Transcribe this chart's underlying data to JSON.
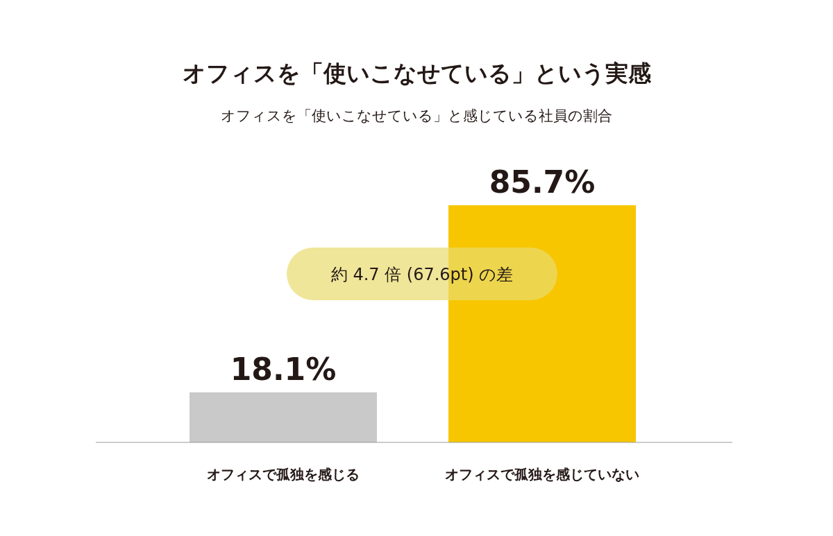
{
  "chart_data": {
    "type": "bar",
    "title": "オフィスを「使いこなせている」という実感",
    "subtitle": "オフィスを「使いこなせている」と感じている社員の割合",
    "categories": [
      "オフィスで孤独を感じる",
      "オフィスで孤独を感じていない"
    ],
    "values": [
      18.1,
      85.7
    ],
    "colors": [
      "#c8c9c8",
      "#f7c600"
    ],
    "value_labels": [
      "18.1%",
      "85.7%"
    ],
    "annotations": [
      "約 4.7 倍 (67.6pt) の差"
    ]
  }
}
